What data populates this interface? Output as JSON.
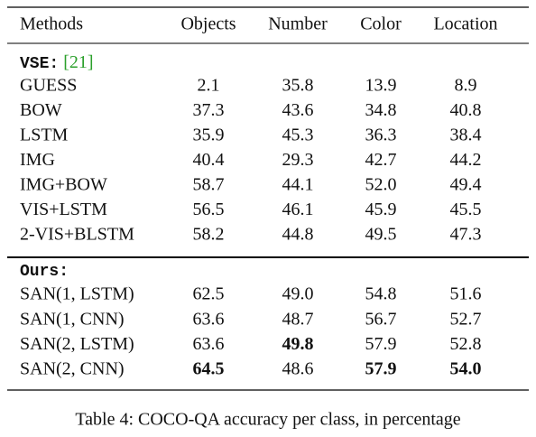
{
  "header": [
    "Methods",
    "Objects",
    "Number",
    "Color",
    "Location"
  ],
  "sections": [
    {
      "label": "VSE:",
      "citation": "[21]",
      "rows": [
        [
          "GUESS",
          "2.1",
          "35.8",
          "13.9",
          "8.9"
        ],
        [
          "BOW",
          "37.3",
          "43.6",
          "34.8",
          "40.8"
        ],
        [
          "LSTM",
          "35.9",
          "45.3",
          "36.3",
          "38.4"
        ],
        [
          "IMG",
          "40.4",
          "29.3",
          "42.7",
          "44.2"
        ],
        [
          "IMG+BOW",
          "58.7",
          "44.1",
          "52.0",
          "49.4"
        ],
        [
          "VIS+LSTM",
          "56.5",
          "46.1",
          "45.9",
          "45.5"
        ],
        [
          "2-VIS+BLSTM",
          "58.2",
          "44.8",
          "49.5",
          "47.3"
        ]
      ]
    },
    {
      "label": "Ours:",
      "rows": [
        [
          "SAN(1, LSTM)",
          "62.5",
          "49.0",
          "54.8",
          "51.6"
        ],
        [
          "SAN(1, CNN)",
          "63.6",
          "48.7",
          "56.7",
          "52.7"
        ],
        [
          "SAN(2, LSTM)",
          "63.6",
          "49.8",
          "57.9",
          "52.8"
        ],
        [
          "SAN(2, CNN)",
          "64.5",
          "48.6",
          "57.9",
          "54.0"
        ]
      ]
    }
  ],
  "caption": "Table 4: COCO-QA accuracy per class, in percentage"
}
